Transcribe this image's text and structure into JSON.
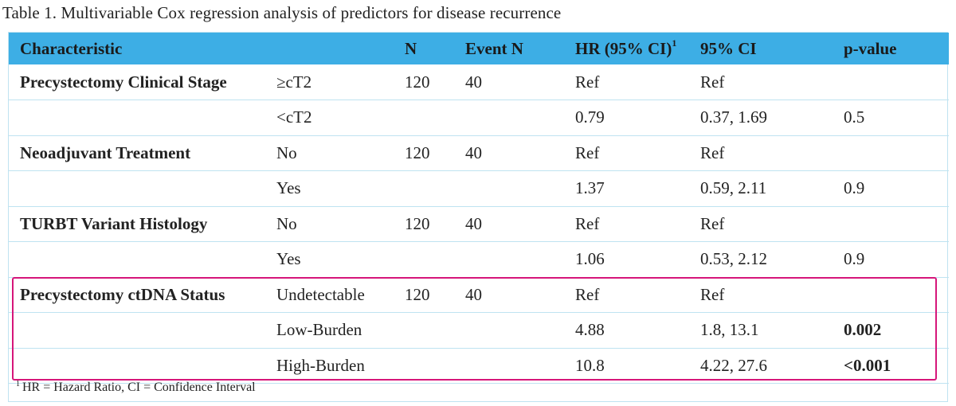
{
  "caption": "Table 1. Multivariable Cox regression analysis of predictors for disease recurrence",
  "headers": {
    "characteristic": "Characteristic",
    "level": "",
    "n": "N",
    "event_n": "Event N",
    "hr": "HR (95% CI)",
    "hr_sup": "1",
    "ci": "95% CI",
    "p": "p-value"
  },
  "rows": [
    {
      "characteristic": "Precystectomy Clinical Stage",
      "level": "≥cT2",
      "n": "120",
      "event_n": "40",
      "hr": "Ref",
      "ci": "Ref",
      "p": "",
      "p_bold": false
    },
    {
      "characteristic": "",
      "level": "<cT2",
      "n": "",
      "event_n": "",
      "hr": "0.79",
      "ci": "0.37, 1.69",
      "p": "0.5",
      "p_bold": false
    },
    {
      "characteristic": "Neoadjuvant Treatment",
      "level": "No",
      "n": "120",
      "event_n": "40",
      "hr": "Ref",
      "ci": "Ref",
      "p": "",
      "p_bold": false
    },
    {
      "characteristic": "",
      "level": "Yes",
      "n": "",
      "event_n": "",
      "hr": "1.37",
      "ci": "0.59, 2.11",
      "p": "0.9",
      "p_bold": false
    },
    {
      "characteristic": "TURBT Variant Histology",
      "level": "No",
      "n": "120",
      "event_n": "40",
      "hr": "Ref",
      "ci": "Ref",
      "p": "",
      "p_bold": false
    },
    {
      "characteristic": "",
      "level": "Yes",
      "n": "",
      "event_n": "",
      "hr": "1.06",
      "ci": "0.53, 2.12",
      "p": "0.9",
      "p_bold": false
    },
    {
      "characteristic": "Precystectomy ctDNA Status",
      "level": "Undetectable",
      "n": "120",
      "event_n": "40",
      "hr": "Ref",
      "ci": "Ref",
      "p": "",
      "p_bold": false
    },
    {
      "characteristic": "",
      "level": "Low-Burden",
      "n": "",
      "event_n": "",
      "hr": "4.88",
      "ci": "1.8, 13.1",
      "p": "0.002",
      "p_bold": true
    },
    {
      "characteristic": "",
      "level": "High-Burden",
      "n": "",
      "event_n": "",
      "hr": "10.8",
      "ci": "4.22, 27.6",
      "p": "<0.001",
      "p_bold": true
    }
  ],
  "footnote_sup": "1",
  "footnote": "HR = Hazard Ratio, CI = Confidence Interval",
  "colors": {
    "header_bg": "#3daee5",
    "row_border": "#bfe3f1",
    "highlight": "#d6167a"
  }
}
